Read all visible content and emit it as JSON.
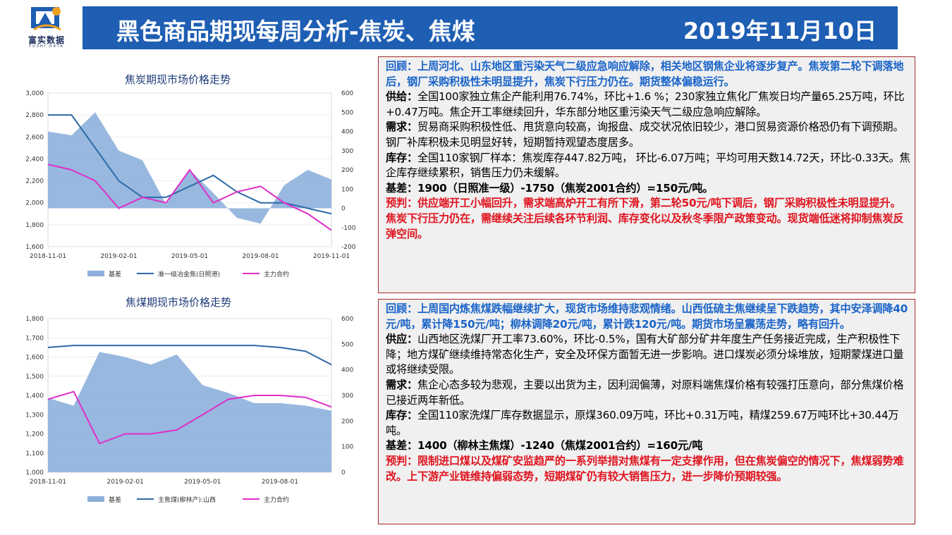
{
  "header": {
    "title": "黑色商品期现每周分析-焦炭、焦煤",
    "date": "2019年11月10日"
  },
  "logo": {
    "name": "富实数据",
    "sub": "FUSHI DATA",
    "icon": "logo-mark-icon"
  },
  "colors": {
    "header_bg": "#1e5eb3",
    "basis": "#8db0dc",
    "spot": "#2c6aa8",
    "futures": "#e02ec8",
    "panel_border": "#a5292b",
    "review": "#1a64c9",
    "forecast": "#e0141f"
  },
  "charts": {
    "coke": {
      "title": "焦炭期现市场价格走势",
      "left_ticks": [
        "3,000",
        "2,800",
        "2,600",
        "2,400",
        "2,200",
        "2,000",
        "1,800",
        "1,600"
      ],
      "right_ticks": [
        "600",
        "500",
        "400",
        "300",
        "200",
        "100",
        "0",
        "-100",
        "-200"
      ],
      "x_ticks": [
        "2018-11-01",
        "2019-02-01",
        "2019-05-01",
        "2019-08-01",
        "2019-11-01"
      ],
      "legend": [
        "基差",
        "准一级冶金焦(日照港)",
        "主力合约"
      ]
    },
    "coal": {
      "title": "焦煤期现市场价格走势",
      "left_ticks": [
        "1,800",
        "1,700",
        "1,600",
        "1,500",
        "1,400",
        "1,300",
        "1,200",
        "1,100",
        "1,000"
      ],
      "right_ticks": [
        "600",
        "500",
        "400",
        "300",
        "200",
        "100",
        "0"
      ],
      "x_ticks": [
        "2018-11-01",
        "2019-02-01",
        "2019-05-01",
        "2019-08-01"
      ],
      "legend": [
        "基差",
        "主焦煤(柳林产):山西",
        "主力合约"
      ]
    }
  },
  "chart_data": [
    {
      "type": "line",
      "title": "焦炭期现市场价格走势",
      "x": [
        "2018-11-01",
        "2018-12-01",
        "2019-01-01",
        "2019-02-01",
        "2019-03-01",
        "2019-04-01",
        "2019-05-01",
        "2019-06-01",
        "2019-07-01",
        "2019-08-01",
        "2019-09-01",
        "2019-10-01",
        "2019-11-01"
      ],
      "ylim_left": [
        1600,
        3000
      ],
      "ylim_right": [
        -200,
        600
      ],
      "series": [
        {
          "name": "基差",
          "axis": "right",
          "type": "area",
          "values": [
            400,
            380,
            500,
            300,
            250,
            20,
            200,
            80,
            -50,
            -80,
            120,
            200,
            150
          ]
        },
        {
          "name": "准一级冶金焦(日照港)",
          "axis": "left",
          "values": [
            2800,
            2800,
            2500,
            2200,
            2050,
            2050,
            2150,
            2250,
            2100,
            2000,
            2000,
            1950,
            1900
          ]
        },
        {
          "name": "主力合约",
          "axis": "left",
          "values": [
            2350,
            2300,
            2200,
            1950,
            2050,
            2000,
            2300,
            2000,
            2100,
            2150,
            2000,
            1900,
            1750
          ]
        }
      ],
      "legend": "bottom"
    },
    {
      "type": "line",
      "title": "焦煤期现市场价格走势",
      "x": [
        "2018-11-01",
        "2018-12-01",
        "2019-01-01",
        "2019-02-01",
        "2019-03-01",
        "2019-04-01",
        "2019-05-01",
        "2019-06-01",
        "2019-07-01",
        "2019-08-01",
        "2019-09-01",
        "2019-10-01"
      ],
      "ylim_left": [
        1000,
        1800
      ],
      "ylim_right": [
        0,
        600
      ],
      "series": [
        {
          "name": "基差",
          "axis": "right",
          "type": "area",
          "values": [
            290,
            260,
            470,
            450,
            420,
            460,
            340,
            310,
            270,
            270,
            260,
            240
          ]
        },
        {
          "name": "主焦煤(柳林产):山西",
          "axis": "left",
          "values": [
            1650,
            1660,
            1660,
            1660,
            1660,
            1660,
            1660,
            1660,
            1660,
            1650,
            1630,
            1560
          ]
        },
        {
          "name": "主力合约",
          "axis": "left",
          "values": [
            1380,
            1420,
            1150,
            1200,
            1200,
            1220,
            1300,
            1380,
            1400,
            1400,
            1390,
            1340
          ]
        }
      ],
      "legend": "bottom"
    }
  ],
  "panels": {
    "coke": {
      "review": "回顾：上周河北、山东地区重污染天气二级应急响应解除，相关地区钢焦企业将逐步复产。焦炭第二轮下调落地后，钢厂采购积极性未明显提升，焦炭下行压力仍在。期货整体偏稳运行。",
      "supply_label": "供给：",
      "supply": "全国100家独立焦企产能利用76.74%，环比+1.6 %；230家独立焦化厂焦炭日均产量65.25万吨，环比+0.47万吨。焦企开工率继续回升，华东部分地区重污染天气二级应急响应解除。",
      "demand_label": "需求：",
      "demand": "贸易商采购积极性低、甩货意向较高，询报盘、成交状况依旧较少，港口贸易资源价格恐仍有下调预期。钢厂补库积极未见明显好转，短期暂持观望态度居多。",
      "stock_label": "库存：",
      "stock": "全国110家钢厂样本：焦炭库存447.82万吨， 环比-6.07万吨；平均可用天数14.72天，环比-0.33天。焦企库存继续累积，销售压力仍未缓解。",
      "basis": "基差：1900（日照准一级）-1750（焦炭2001合约）=150元/吨。",
      "forecast": "预判：供应端开工小幅回升，需求端高炉开工有所下滑，第二轮50元/吨下调后，钢厂采购积极性未明显提升。焦炭下行压力仍在，需继续关注后续各环节利润、库存变化以及秋冬季限产政策变动。现货端低迷将抑制焦炭反弹空间。"
    },
    "coal": {
      "review": "回顾：上周国内炼焦煤跌幅继续扩大，现货市场维持悲观情绪。山西低硫主焦继续呈下跌趋势，其中安泽调降40元/吨，累计降150元/吨；柳林调降20元/吨，累计跌120元/吨。期货市场呈震荡走势，略有回升。",
      "supply_label": "供应：",
      "supply": "山西地区洗煤厂开工率73.60%，环比-0.5%，国有大矿部分矿井年度生产任务接近完成，生产积极性下降；地方煤矿继续维持常态化生产，安全及环保方面暂无进一步影响。进口煤炭必须分垛堆放，短期蒙煤进口量或将继续受限。",
      "demand_label": "需求：",
      "demand": "焦企心态多较为悲观，主要以出货为主，因利润偏薄，对原料端焦煤价格有较强打压意向，部分焦煤价格已接近两年新低。",
      "stock_label": "库存：",
      "stock": "全国110家洗煤厂库存数据显示，原煤360.09万吨，环比+0.31万吨，精煤259.67万吨环比+30.44万吨。",
      "basis": "基差：1400（柳林主焦煤）-1240（焦煤2001合约）=160元/吨",
      "forecast": "预判：限制进口煤以及煤矿安监趋严的一系列举措对焦煤有一定支撑作用，但在焦炭偏空的情况下，焦煤弱势难改。上下游产业链维持偏弱态势，短期煤矿仍有较大销售压力，进一步降价预期较强。"
    }
  }
}
